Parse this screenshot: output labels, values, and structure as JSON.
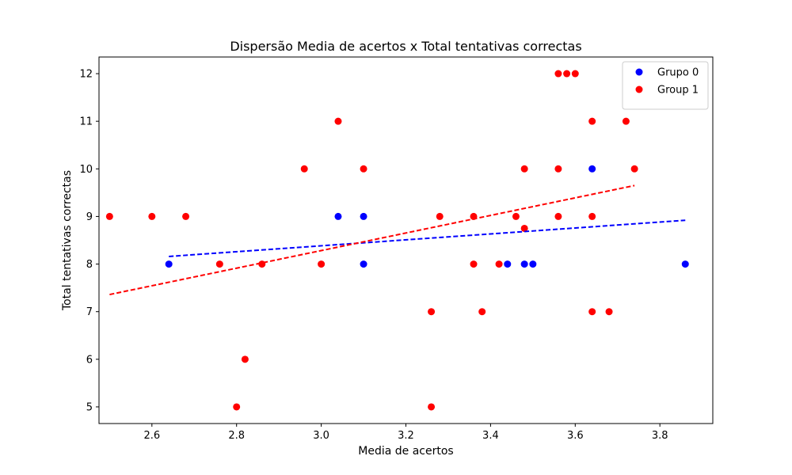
{
  "chart_data": {
    "type": "scatter",
    "title": "Dispersão Media de acertos x Total tentativas correctas",
    "xlabel": "Media de acertos",
    "ylabel": "Total tentativas correctas",
    "xlim": [
      2.475,
      3.925
    ],
    "ylim": [
      4.65,
      12.35
    ],
    "xticks": [
      2.6,
      2.8,
      3.0,
      3.2,
      3.4,
      3.6,
      3.8
    ],
    "xtick_labels": [
      "2.6",
      "2.8",
      "3.0",
      "3.2",
      "3.4",
      "3.6",
      "3.8"
    ],
    "yticks": [
      5,
      6,
      7,
      8,
      9,
      10,
      11,
      12
    ],
    "ytick_labels": [
      "5",
      "6",
      "7",
      "8",
      "9",
      "10",
      "11",
      "12"
    ],
    "grid": false,
    "legend_position": "top-right",
    "series": [
      {
        "name": "Grupo 0",
        "color": "#0000ff",
        "x": [
          2.64,
          3.04,
          3.1,
          3.1,
          3.44,
          3.48,
          3.5,
          3.64,
          3.86
        ],
        "y": [
          8,
          9,
          9,
          8,
          8,
          8,
          8,
          10,
          8
        ],
        "trendline": {
          "x": [
            2.64,
            3.86
          ],
          "y": [
            8.16,
            8.92
          ]
        }
      },
      {
        "name": "Group 1",
        "color": "#ff0000",
        "x": [
          2.5,
          2.6,
          2.68,
          2.76,
          2.8,
          2.82,
          2.86,
          2.96,
          3.0,
          3.04,
          3.1,
          3.26,
          3.26,
          3.28,
          3.36,
          3.36,
          3.38,
          3.42,
          3.46,
          3.48,
          3.48,
          3.56,
          3.56,
          3.56,
          3.58,
          3.6,
          3.64,
          3.64,
          3.64,
          3.68,
          3.72,
          3.74
        ],
        "y": [
          9,
          9,
          9,
          8,
          5,
          6,
          8,
          10,
          8,
          11,
          10,
          7,
          5,
          9,
          9,
          8,
          7,
          8,
          9,
          10,
          8.75,
          12,
          10,
          9,
          12,
          12,
          11,
          9,
          7,
          7,
          11,
          10
        ],
        "trendline": {
          "x": [
            2.5,
            3.74
          ],
          "y": [
            7.36,
            9.65
          ]
        }
      }
    ]
  }
}
